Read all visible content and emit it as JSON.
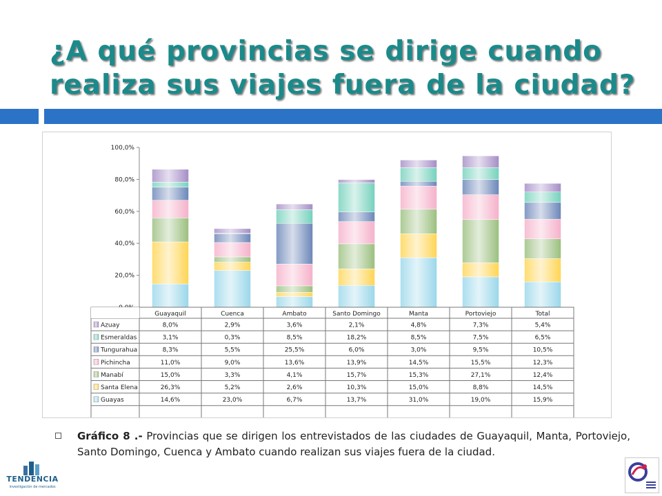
{
  "slide": {
    "title": "¿A qué provincias se dirige cuando realiza sus viajes fuera de la ciudad?",
    "caption_lead": "Gráfico 8 .-",
    "caption_text": " Provincias que se dirigen los entrevistados de las ciudades de Guayaquil, Manta, Portoviejo, Santo Domingo, Cuenca y Ambato cuando realizan sus viajes fuera de la ciudad.",
    "logo_left_name": "TENDENCIA",
    "logo_left_tagline": "investigación de mercados",
    "colors": {
      "title": "#1b8a8a",
      "rule": "#2b73c7"
    }
  },
  "chart_data": {
    "type": "bar",
    "stacked": true,
    "categories": [
      "Guayaquil",
      "Cuenca",
      "Ambato",
      "Santo Domingo",
      "Manta",
      "Portoviejo",
      "Total"
    ],
    "ylim": [
      0,
      100
    ],
    "yticks": [
      "0,0%",
      "20,0%",
      "40,0%",
      "60,0%",
      "80,0%",
      "100,0%"
    ],
    "grid": false,
    "legend": "table-below",
    "series": [
      {
        "name": "Guayas",
        "color": "#8fd3e8",
        "values": [
          14.6,
          23.0,
          6.7,
          13.7,
          31.0,
          19.0,
          15.9
        ],
        "labels": [
          "14,6%",
          "23,0%",
          "6,7%",
          "13,7%",
          "31,0%",
          "19,0%",
          "15,9%"
        ]
      },
      {
        "name": "Santa Elena",
        "color": "#ffd040",
        "values": [
          26.3,
          5.2,
          2.6,
          10.3,
          15.0,
          8.8,
          14.5
        ],
        "labels": [
          "26,3%",
          "5,2%",
          "2,6%",
          "10,3%",
          "15,0%",
          "8,8%",
          "14,5%"
        ]
      },
      {
        "name": "Manabí",
        "color": "#90b870",
        "values": [
          15.0,
          3.3,
          4.1,
          15.7,
          15.3,
          27.1,
          12.4
        ],
        "labels": [
          "15,0%",
          "3,3%",
          "4,1%",
          "15,7%",
          "15,3%",
          "27,1%",
          "12,4%"
        ]
      },
      {
        "name": "Pichincha",
        "color": "#f4a8c4",
        "values": [
          11.0,
          9.0,
          13.6,
          13.9,
          14.5,
          15.5,
          12.3
        ],
        "labels": [
          "11,0%",
          "9,0%",
          "13,6%",
          "13,9%",
          "14,5%",
          "15,5%",
          "12,3%"
        ]
      },
      {
        "name": "Tungurahua",
        "color": "#5a78b0",
        "values": [
          8.3,
          5.5,
          25.5,
          6.0,
          3.0,
          9.5,
          10.5
        ],
        "labels": [
          "8,3%",
          "5,5%",
          "25,5%",
          "6,0%",
          "3,0%",
          "9,5%",
          "10,5%"
        ]
      },
      {
        "name": "Esmeraldas",
        "color": "#66ccb4",
        "values": [
          3.1,
          0.3,
          8.5,
          18.2,
          8.5,
          7.5,
          6.5
        ],
        "labels": [
          "3,1%",
          "0,3%",
          "8,5%",
          "18,2%",
          "8,5%",
          "7,5%",
          "6,5%"
        ]
      },
      {
        "name": "Azuay",
        "color": "#9a80c0",
        "values": [
          8.0,
          2.9,
          3.6,
          2.1,
          4.8,
          7.3,
          5.4
        ],
        "labels": [
          "8,0%",
          "2,9%",
          "3,6%",
          "2,1%",
          "4,8%",
          "7,3%",
          "5,4%"
        ]
      }
    ]
  }
}
